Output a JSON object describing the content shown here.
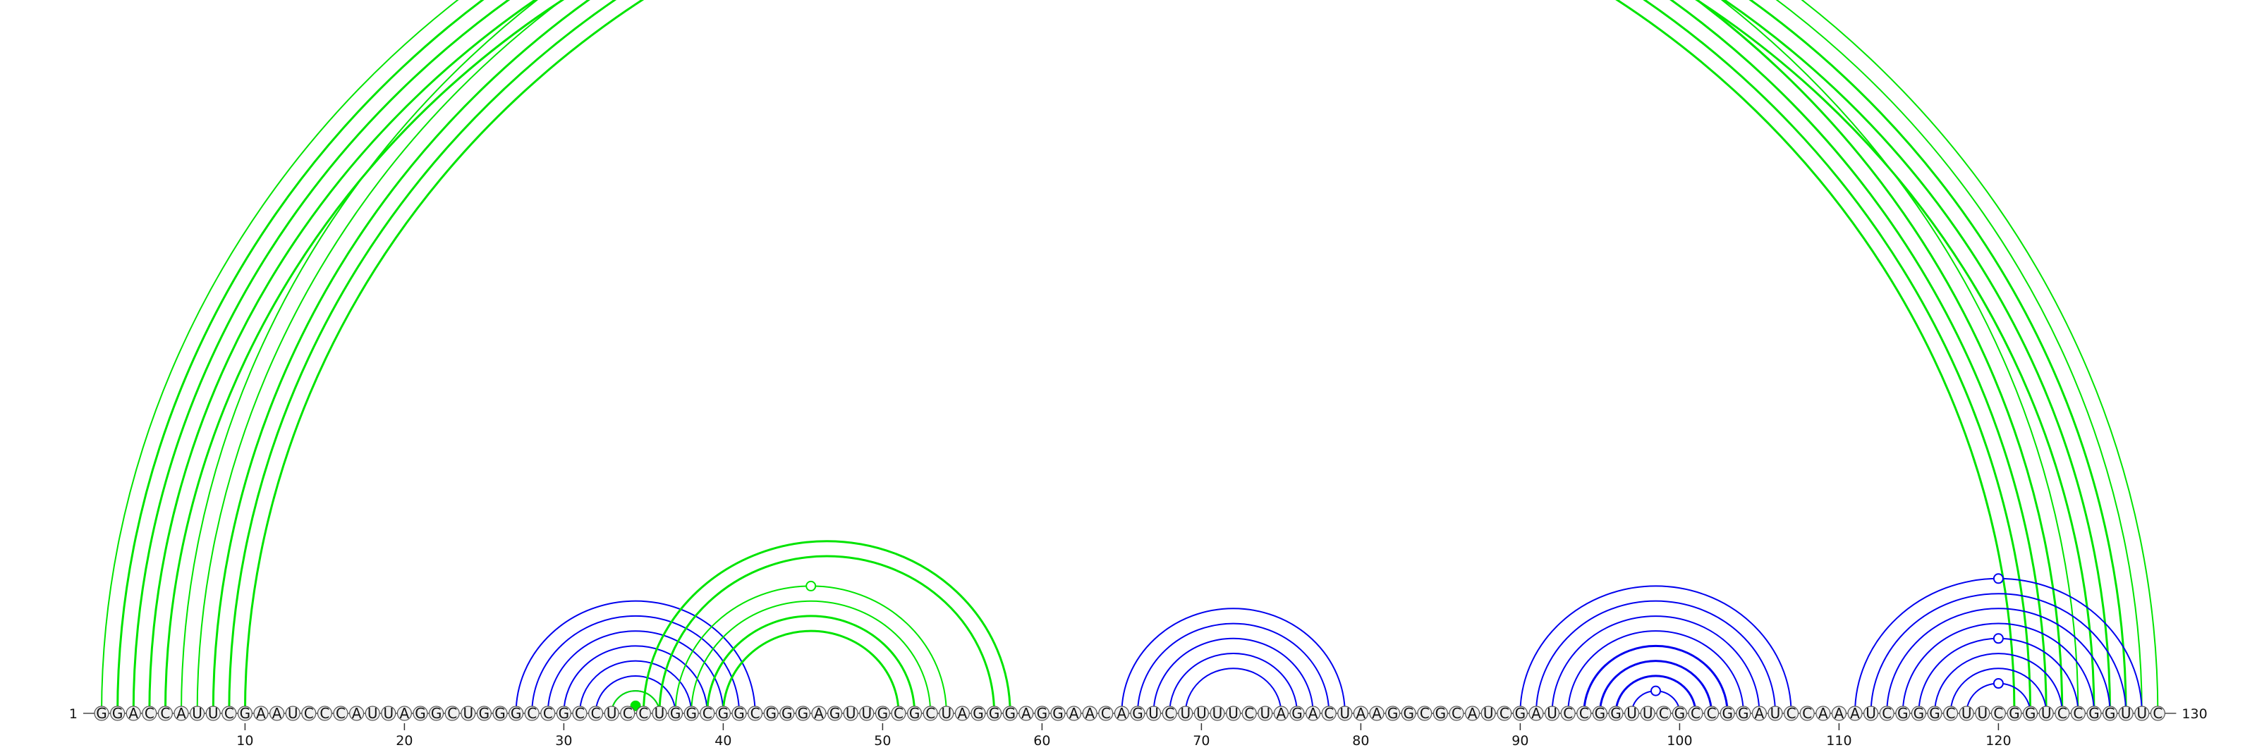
{
  "chart_data": {
    "type": "arc-diagram",
    "sequence": "GGACCAUUCGAAUCCCAUUAGGCUGGGCCGCCUCCUGGCGGCGGGAGUUGCGCUAGGGAGGAACAGUCUUUUCUAGACUAAGGCGCAUCGAUCCGGUUCGCCGGAUCCAAAUCGGGCUUCGGUCCGGUUC",
    "length": 130,
    "start_label": "1",
    "end_label": "130",
    "ticks": [
      10,
      20,
      30,
      40,
      50,
      60,
      70,
      80,
      90,
      100,
      110,
      120
    ],
    "colors": {
      "primary": "#0000ee",
      "alternative": "#00e400",
      "nucleotide_fill": "#f0f0f0",
      "nucleotide_stroke": "#555555"
    },
    "arcs": [
      {
        "series": "alternative",
        "i": 1,
        "j": 125,
        "lw": 2
      },
      {
        "series": "alternative",
        "i": 2,
        "j": 124,
        "lw": 3
      },
      {
        "series": "alternative",
        "i": 3,
        "j": 123,
        "lw": 3
      },
      {
        "series": "alternative",
        "i": 4,
        "j": 122,
        "lw": 3
      },
      {
        "series": "alternative",
        "i": 5,
        "j": 121,
        "lw": 3
      },
      {
        "series": "alternative",
        "i": 6,
        "j": 130,
        "lw": 2
      },
      {
        "series": "alternative",
        "i": 7,
        "j": 129,
        "lw": 2
      },
      {
        "series": "alternative",
        "i": 8,
        "j": 128,
        "lw": 3
      },
      {
        "series": "alternative",
        "i": 9,
        "j": 127,
        "lw": 3
      },
      {
        "series": "alternative",
        "i": 10,
        "j": 126,
        "lw": 3
      },
      {
        "series": "primary",
        "i": 27,
        "j": 42,
        "lw": 2
      },
      {
        "series": "primary",
        "i": 28,
        "j": 41,
        "lw": 2
      },
      {
        "series": "primary",
        "i": 29,
        "j": 40,
        "lw": 2
      },
      {
        "series": "primary",
        "i": 30,
        "j": 39,
        "lw": 2
      },
      {
        "series": "primary",
        "i": 31,
        "j": 38,
        "lw": 2
      },
      {
        "series": "primary",
        "i": 32,
        "j": 37,
        "lw": 2
      },
      {
        "series": "primary",
        "i": 33,
        "j": 36,
        "lw": 2
      },
      {
        "series": "alternative",
        "i": 33,
        "j": 36,
        "lw": 2
      },
      {
        "series": "alternative",
        "i": 35,
        "j": 58,
        "lw": 3
      },
      {
        "series": "alternative",
        "i": 36,
        "j": 57,
        "lw": 3
      },
      {
        "series": "alternative",
        "i": 37,
        "j": 54,
        "lw": 2
      },
      {
        "series": "alternative",
        "i": 38,
        "j": 53,
        "lw": 2
      },
      {
        "series": "alternative",
        "i": 39,
        "j": 52,
        "lw": 3
      },
      {
        "series": "alternative",
        "i": 40,
        "j": 51,
        "lw": 3
      },
      {
        "series": "primary",
        "i": 65,
        "j": 79,
        "lw": 2
      },
      {
        "series": "primary",
        "i": 66,
        "j": 78,
        "lw": 2
      },
      {
        "series": "primary",
        "i": 67,
        "j": 77,
        "lw": 2
      },
      {
        "series": "primary",
        "i": 68,
        "j": 76,
        "lw": 2
      },
      {
        "series": "primary",
        "i": 69,
        "j": 75,
        "lw": 2
      },
      {
        "series": "primary",
        "i": 90,
        "j": 107,
        "lw": 2
      },
      {
        "series": "primary",
        "i": 91,
        "j": 106,
        "lw": 2
      },
      {
        "series": "primary",
        "i": 92,
        "j": 105,
        "lw": 2
      },
      {
        "series": "primary",
        "i": 93,
        "j": 104,
        "lw": 2
      },
      {
        "series": "primary",
        "i": 94,
        "j": 103,
        "lw": 3
      },
      {
        "series": "primary",
        "i": 95,
        "j": 102,
        "lw": 3
      },
      {
        "series": "primary",
        "i": 96,
        "j": 101,
        "lw": 3
      },
      {
        "series": "primary",
        "i": 97,
        "j": 100,
        "lw": 2
      },
      {
        "series": "primary",
        "i": 111,
        "j": 129,
        "lw": 2
      },
      {
        "series": "primary",
        "i": 112,
        "j": 128,
        "lw": 2
      },
      {
        "series": "primary",
        "i": 113,
        "j": 127,
        "lw": 2
      },
      {
        "series": "primary",
        "i": 114,
        "j": 126,
        "lw": 2
      },
      {
        "series": "primary",
        "i": 115,
        "j": 125,
        "lw": 2
      },
      {
        "series": "primary",
        "i": 116,
        "j": 124,
        "lw": 2
      },
      {
        "series": "primary",
        "i": 117,
        "j": 123,
        "lw": 2
      },
      {
        "series": "primary",
        "i": 118,
        "j": 122,
        "lw": 2
      }
    ],
    "markers": [
      {
        "series": "alternative",
        "i": 6,
        "j": 130,
        "fill": "open"
      },
      {
        "series": "alternative",
        "i": 37,
        "j": 54,
        "fill": "open"
      },
      {
        "series": "alternative",
        "i": 34,
        "j": 35,
        "fill": "solid"
      },
      {
        "series": "primary",
        "i": 97,
        "j": 100,
        "fill": "open"
      },
      {
        "series": "primary",
        "i": 111,
        "j": 129,
        "fill": "open"
      },
      {
        "series": "primary",
        "i": 115,
        "j": 125,
        "fill": "open"
      },
      {
        "series": "primary",
        "i": 118,
        "j": 122,
        "fill": "open"
      }
    ]
  }
}
